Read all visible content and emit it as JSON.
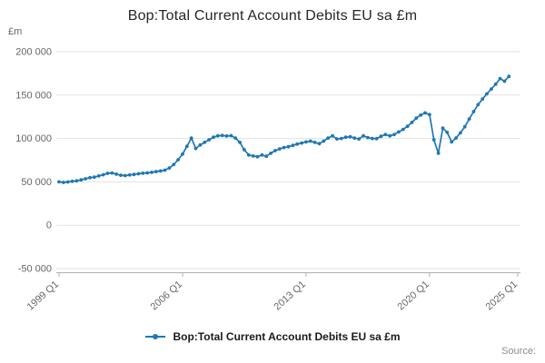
{
  "title": "Bop:Total Current Account Debits EU sa £m",
  "y_axis_unit_label": "£m",
  "source_label": "Source:",
  "legend": {
    "label": "Bop:Total Current Account Debits EU sa £m"
  },
  "colors": {
    "line": "#1f77b4",
    "grid": "#e2e2e2",
    "axis": "#b0b0b0",
    "tick_text": "#666666",
    "title_text": "#262626"
  },
  "chart_data": {
    "type": "line",
    "title": "Bop:Total Current Account Debits EU sa £m",
    "xlabel": "",
    "ylabel": "£m",
    "ylim": [
      -50000,
      200000
    ],
    "x_domain": [
      1999.0,
      2025.0
    ],
    "frequency": "quarterly",
    "x_start": "1999 Q1",
    "x_end": "2024 Q3",
    "grid": "horizontal",
    "legend_position": "bottom",
    "y_ticks": [
      {
        "value": 200000,
        "label": "200 000"
      },
      {
        "value": 150000,
        "label": "150 000"
      },
      {
        "value": 100000,
        "label": "100 000"
      },
      {
        "value": 50000,
        "label": "50 000"
      },
      {
        "value": 0,
        "label": "0"
      },
      {
        "value": -50000,
        "label": "-50 000"
      }
    ],
    "x_ticks": [
      {
        "t": 1999.0,
        "label": "1999 Q1"
      },
      {
        "t": 2006.0,
        "label": "2006 Q1"
      },
      {
        "t": 2013.0,
        "label": "2013 Q1"
      },
      {
        "t": 2020.0,
        "label": "2020 Q1"
      },
      {
        "t": 2025.0,
        "label": "2025 Q1"
      }
    ],
    "series": [
      {
        "name": "Bop:Total Current Account Debits EU sa £m",
        "marker": "circle",
        "values": [
          50000,
          49400,
          49900,
          50600,
          51200,
          52300,
          53600,
          54800,
          55400,
          56800,
          58200,
          59800,
          60300,
          58900,
          57600,
          57200,
          57900,
          58600,
          59300,
          59900,
          60400,
          61000,
          61800,
          62600,
          63500,
          66000,
          70000,
          75500,
          82000,
          91000,
          100500,
          88500,
          92500,
          95500,
          98500,
          101500,
          103000,
          103500,
          102800,
          103200,
          100500,
          95500,
          87000,
          81000,
          79800,
          79000,
          81000,
          79500,
          83000,
          86000,
          88000,
          89500,
          90500,
          92000,
          93500,
          94800,
          96000,
          97000,
          95500,
          94000,
          97000,
          100500,
          103000,
          99500,
          100000,
          101500,
          102000,
          100500,
          99500,
          103000,
          101000,
          100000,
          99800,
          102500,
          104500,
          103000,
          104500,
          107500,
          110500,
          114000,
          118500,
          123500,
          127000,
          129500,
          127500,
          98500,
          83000,
          112000,
          107000,
          96000,
          100500,
          106500,
          113500,
          122500,
          131000,
          139000,
          145500,
          151500,
          157000,
          162500,
          169000,
          166000,
          171500
        ]
      }
    ]
  }
}
